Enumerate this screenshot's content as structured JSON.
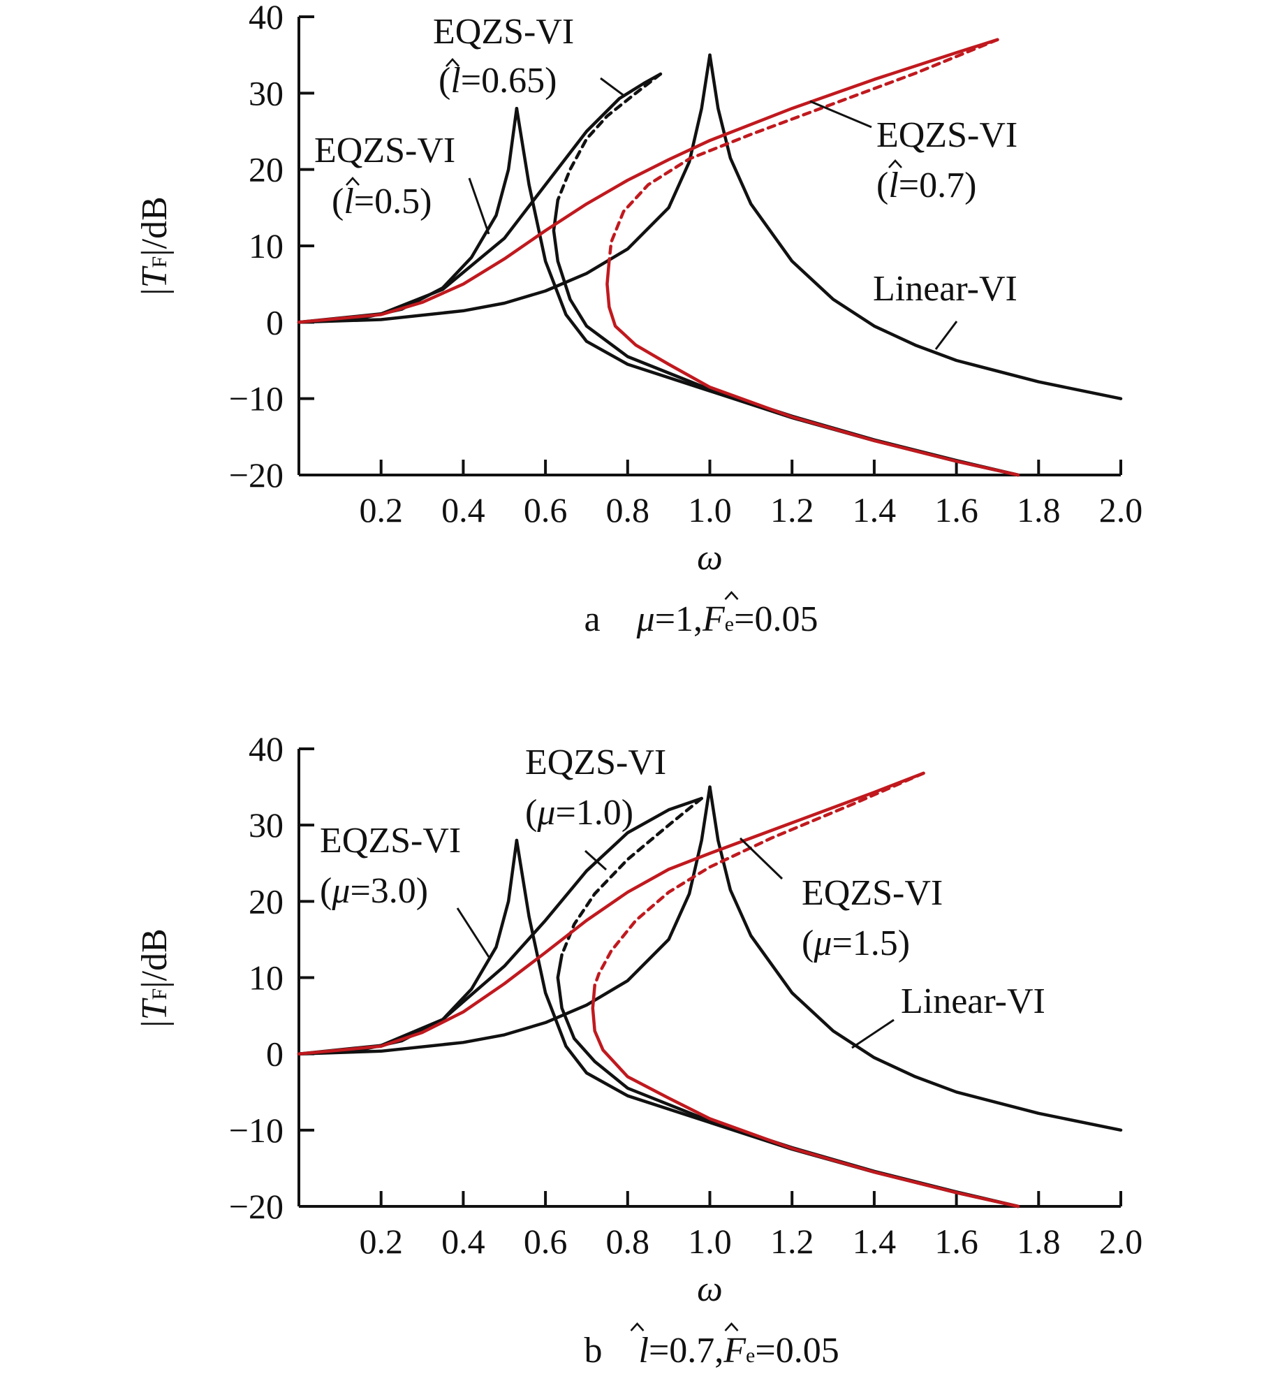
{
  "chart_data": [
    {
      "type": "line",
      "panel": "a",
      "caption": {
        "letter": "a",
        "parts": [
          "μ",
          "=1,",
          "F",
          "e",
          "=0.05"
        ]
      },
      "xlabel": "ω",
      "ylabel": {
        "prefix": "|",
        "var": "T",
        "sub": "F",
        "suffix": "|/dB"
      },
      "xlim": [
        0,
        2.0
      ],
      "ylim": [
        -20,
        40
      ],
      "xticks": [
        "0.2",
        "0.4",
        "0.6",
        "0.8",
        "1.0",
        "1.2",
        "1.4",
        "1.6",
        "1.8",
        "2.0"
      ],
      "yticks": [
        "40",
        "30",
        "20",
        "10",
        "0",
        "−10",
        "−20"
      ],
      "series": [
        {
          "name": "Linear-VI",
          "color": "#111111",
          "upper": [
            [
              0,
              0
            ],
            [
              0.2,
              0.35
            ],
            [
              0.4,
              1.5
            ],
            [
              0.5,
              2.5
            ],
            [
              0.6,
              4.1
            ],
            [
              0.7,
              6.4
            ],
            [
              0.8,
              9.6
            ],
            [
              0.9,
              15
            ],
            [
              0.95,
              21
            ],
            [
              0.98,
              28
            ],
            [
              1.0,
              35
            ]
          ],
          "lower": [
            [
              1.0,
              35
            ],
            [
              1.02,
              28
            ],
            [
              1.05,
              21.5
            ],
            [
              1.1,
              15.5
            ],
            [
              1.2,
              8
            ],
            [
              1.3,
              3
            ],
            [
              1.4,
              -0.5
            ],
            [
              1.5,
              -3
            ],
            [
              1.6,
              -5
            ],
            [
              1.8,
              -7.8
            ],
            [
              2.0,
              -10
            ]
          ]
        },
        {
          "name": "EQZS-VI (l̂=0.5)",
          "color": "#111111",
          "upper": [
            [
              0,
              0
            ],
            [
              0.15,
              0.5
            ],
            [
              0.25,
              1.7
            ],
            [
              0.35,
              4.5
            ],
            [
              0.42,
              8.5
            ],
            [
              0.48,
              14
            ],
            [
              0.51,
              20
            ],
            [
              0.53,
              28
            ]
          ],
          "lower": [
            [
              0.53,
              28
            ],
            [
              0.56,
              18
            ],
            [
              0.6,
              8
            ],
            [
              0.65,
              1
            ],
            [
              0.7,
              -2.5
            ],
            [
              0.8,
              -5.5
            ],
            [
              1.0,
              -9
            ],
            [
              1.2,
              -12.5
            ],
            [
              1.4,
              -15.5
            ],
            [
              1.6,
              -18.2
            ],
            [
              1.75,
              -20
            ]
          ]
        },
        {
          "name": "EQZS-VI (l̂=0.65)",
          "color": "#111111",
          "upper": [
            [
              0,
              0
            ],
            [
              0.2,
              1.1
            ],
            [
              0.35,
              4.3
            ],
            [
              0.5,
              11
            ],
            [
              0.6,
              18
            ],
            [
              0.7,
              25
            ],
            [
              0.78,
              29.3
            ],
            [
              0.84,
              31.3
            ],
            [
              0.88,
              32.5
            ]
          ],
          "dashed": [
            [
              0.88,
              32.5
            ],
            [
              0.82,
              30
            ],
            [
              0.75,
              27
            ],
            [
              0.7,
              24
            ],
            [
              0.66,
              20
            ],
            [
              0.63,
              16
            ]
          ],
          "lower": [
            [
              0.63,
              16
            ],
            [
              0.62,
              12
            ],
            [
              0.63,
              8
            ],
            [
              0.66,
              3
            ],
            [
              0.7,
              -0.5
            ],
            [
              0.8,
              -4.5
            ],
            [
              1.0,
              -8.8
            ],
            [
              1.2,
              -12.3
            ],
            [
              1.4,
              -15.4
            ],
            [
              1.6,
              -18.1
            ],
            [
              1.75,
              -20
            ]
          ]
        },
        {
          "name": "EQZS-VI (l̂=0.7)",
          "color": "#c0191e",
          "upper": [
            [
              0,
              0
            ],
            [
              0.2,
              1
            ],
            [
              0.3,
              2.6
            ],
            [
              0.4,
              5
            ],
            [
              0.5,
              8.3
            ],
            [
              0.6,
              12
            ],
            [
              0.7,
              15.5
            ],
            [
              0.8,
              18.6
            ],
            [
              0.9,
              21.3
            ],
            [
              1.0,
              23.8
            ],
            [
              1.2,
              28
            ],
            [
              1.4,
              31.8
            ],
            [
              1.6,
              35.3
            ],
            [
              1.7,
              37
            ]
          ],
          "dashed": [
            [
              1.7,
              37
            ],
            [
              1.5,
              32.6
            ],
            [
              1.3,
              28.6
            ],
            [
              1.1,
              24.6
            ],
            [
              0.95,
              21.4
            ],
            [
              0.85,
              18
            ],
            [
              0.79,
              14.5
            ],
            [
              0.76,
              10.5
            ],
            [
              0.755,
              8
            ]
          ],
          "lower": [
            [
              0.755,
              8
            ],
            [
              0.75,
              5
            ],
            [
              0.755,
              2
            ],
            [
              0.77,
              -0.5
            ],
            [
              0.82,
              -3
            ],
            [
              0.9,
              -5.5
            ],
            [
              1.0,
              -8.5
            ],
            [
              1.2,
              -12.4
            ],
            [
              1.4,
              -15.5
            ],
            [
              1.6,
              -18.2
            ],
            [
              1.75,
              -20
            ]
          ]
        }
      ],
      "annotations": [
        {
          "label": "EQZS-VI",
          "param": "l",
          "value": "=0.65)"
        },
        {
          "label": "EQZS-VI",
          "param": "l",
          "value": "=0.5)"
        },
        {
          "label": "EQZS-VI",
          "param": "l",
          "value": "=0.7)"
        },
        {
          "label": "Linear-VI"
        }
      ]
    },
    {
      "type": "line",
      "panel": "b",
      "caption": {
        "letter": "b",
        "parts": [
          "l",
          "=0.7,",
          "F",
          "e",
          "=0.05"
        ]
      },
      "xlabel": "ω",
      "ylabel": {
        "prefix": "|",
        "var": "T",
        "sub": "F",
        "suffix": "|/dB"
      },
      "xlim": [
        0,
        2.0
      ],
      "ylim": [
        -20,
        40
      ],
      "xticks": [
        "0.2",
        "0.4",
        "0.6",
        "0.8",
        "1.0",
        "1.2",
        "1.4",
        "1.6",
        "1.8",
        "2.0"
      ],
      "yticks": [
        "40",
        "30",
        "20",
        "10",
        "0",
        "−10",
        "−20"
      ],
      "series": [
        {
          "name": "Linear-VI",
          "color": "#111111",
          "upper": [
            [
              0,
              0
            ],
            [
              0.2,
              0.35
            ],
            [
              0.4,
              1.5
            ],
            [
              0.5,
              2.5
            ],
            [
              0.6,
              4.1
            ],
            [
              0.7,
              6.4
            ],
            [
              0.8,
              9.6
            ],
            [
              0.9,
              15
            ],
            [
              0.95,
              21
            ],
            [
              0.98,
              28
            ],
            [
              1.0,
              35
            ]
          ],
          "lower": [
            [
              1.0,
              35
            ],
            [
              1.02,
              28
            ],
            [
              1.05,
              21.5
            ],
            [
              1.1,
              15.5
            ],
            [
              1.2,
              8
            ],
            [
              1.3,
              3
            ],
            [
              1.4,
              -0.5
            ],
            [
              1.5,
              -3
            ],
            [
              1.6,
              -5
            ],
            [
              1.8,
              -7.8
            ],
            [
              2.0,
              -10
            ]
          ]
        },
        {
          "name": "EQZS-VI (μ=3.0)",
          "color": "#111111",
          "upper": [
            [
              0,
              0
            ],
            [
              0.15,
              0.5
            ],
            [
              0.25,
              1.7
            ],
            [
              0.35,
              4.5
            ],
            [
              0.42,
              8.5
            ],
            [
              0.48,
              14
            ],
            [
              0.51,
              20
            ],
            [
              0.53,
              28
            ]
          ],
          "lower": [
            [
              0.53,
              28
            ],
            [
              0.56,
              18
            ],
            [
              0.6,
              8
            ],
            [
              0.65,
              1
            ],
            [
              0.7,
              -2.5
            ],
            [
              0.8,
              -5.5
            ],
            [
              1.0,
              -9
            ],
            [
              1.2,
              -12.5
            ],
            [
              1.4,
              -15.5
            ],
            [
              1.6,
              -18.2
            ],
            [
              1.75,
              -20
            ]
          ]
        },
        {
          "name": "EQZS-VI (μ=1.0)",
          "color": "#111111",
          "upper": [
            [
              0,
              0
            ],
            [
              0.2,
              1.1
            ],
            [
              0.35,
              4.5
            ],
            [
              0.5,
              11.5
            ],
            [
              0.6,
              17.5
            ],
            [
              0.7,
              24
            ],
            [
              0.8,
              29
            ],
            [
              0.9,
              32
            ],
            [
              0.98,
              33.5
            ]
          ],
          "dashed": [
            [
              0.98,
              33.5
            ],
            [
              0.9,
              30
            ],
            [
              0.8,
              25.5
            ],
            [
              0.72,
              21
            ],
            [
              0.67,
              17
            ],
            [
              0.64,
              13
            ]
          ],
          "lower": [
            [
              0.64,
              13
            ],
            [
              0.63,
              10
            ],
            [
              0.64,
              6
            ],
            [
              0.67,
              2
            ],
            [
              0.72,
              -1
            ],
            [
              0.8,
              -4.5
            ],
            [
              1.0,
              -8.8
            ],
            [
              1.2,
              -12.3
            ],
            [
              1.4,
              -15.4
            ],
            [
              1.6,
              -18.1
            ],
            [
              1.75,
              -20
            ]
          ]
        },
        {
          "name": "EQZS-VI (μ=1.5)",
          "color": "#c0191e",
          "upper": [
            [
              0,
              0
            ],
            [
              0.2,
              1
            ],
            [
              0.3,
              2.8
            ],
            [
              0.4,
              5.5
            ],
            [
              0.5,
              9.2
            ],
            [
              0.6,
              13.3
            ],
            [
              0.7,
              17.5
            ],
            [
              0.8,
              21.2
            ],
            [
              0.9,
              24.2
            ],
            [
              1.0,
              26.3
            ],
            [
              1.2,
              30.3
            ],
            [
              1.4,
              34.3
            ],
            [
              1.52,
              36.8
            ]
          ],
          "dashed": [
            [
              1.52,
              36.8
            ],
            [
              1.35,
              32.8
            ],
            [
              1.15,
              28.3
            ],
            [
              1.0,
              24.5
            ],
            [
              0.9,
              21.2
            ],
            [
              0.82,
              17.5
            ],
            [
              0.76,
              13.5
            ],
            [
              0.73,
              10.5
            ],
            [
              0.72,
              9
            ]
          ],
          "lower": [
            [
              0.72,
              9
            ],
            [
              0.715,
              6
            ],
            [
              0.72,
              3
            ],
            [
              0.74,
              0.5
            ],
            [
              0.8,
              -3
            ],
            [
              0.9,
              -5.8
            ],
            [
              1.0,
              -8.5
            ],
            [
              1.2,
              -12.4
            ],
            [
              1.4,
              -15.5
            ],
            [
              1.6,
              -18.2
            ],
            [
              1.75,
              -20
            ]
          ]
        }
      ],
      "annotations": [
        {
          "label": "EQZS-VI",
          "param": "μ",
          "value": "=1.0)"
        },
        {
          "label": "EQZS-VI",
          "param": "μ",
          "value": "=3.0)"
        },
        {
          "label": "EQZS-VI",
          "param": "μ",
          "value": "=1.5)"
        },
        {
          "label": "Linear-VI"
        }
      ]
    }
  ]
}
